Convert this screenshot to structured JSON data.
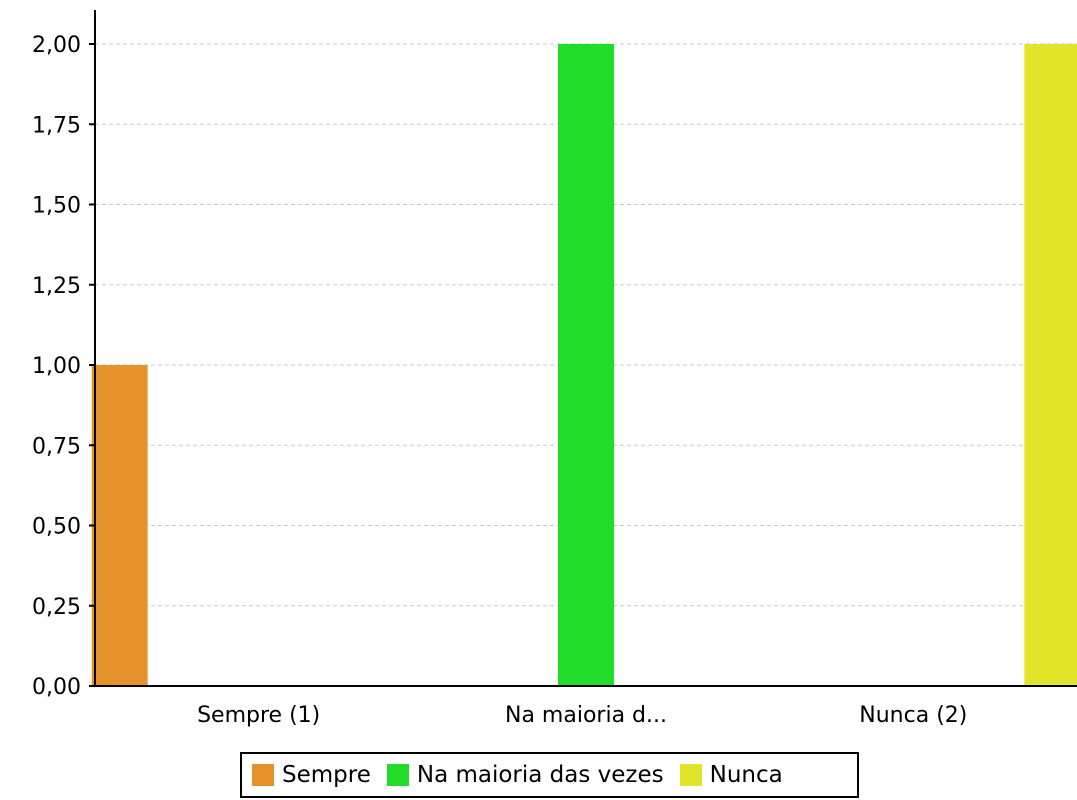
{
  "chart_data": {
    "type": "bar",
    "categories": [
      "Sempre (1)",
      "Na maioria d...",
      "Nunca (2)"
    ],
    "series": [
      {
        "name": "Sempre",
        "color": "#e5922d",
        "values": [
          1,
          0,
          0
        ]
      },
      {
        "name": "Na maioria das vezes",
        "color": "#22dd28",
        "values": [
          0,
          2,
          0
        ]
      },
      {
        "name": "Nunca",
        "color": "#e2e42a",
        "values": [
          0,
          0,
          2
        ]
      }
    ],
    "ylim": [
      0,
      2
    ],
    "yticks": [
      "0,00",
      "0,25",
      "0,50",
      "0,75",
      "1,00",
      "1,25",
      "1,50",
      "1,75",
      "2,00"
    ],
    "grid": true,
    "legend_position": "bottom"
  }
}
